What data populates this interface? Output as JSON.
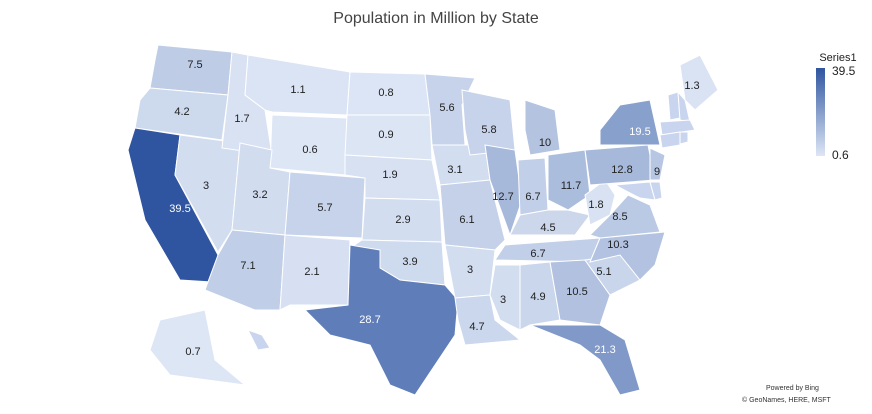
{
  "chart_data": {
    "type": "choropleth",
    "title": "Population in Million by State",
    "series": [
      {
        "name": "Series1",
        "values": [
          7.5,
          4.2,
          39.5,
          3,
          1.7,
          1.1,
          0.6,
          3.2,
          7.1,
          5.7,
          2.1,
          0.8,
          0.9,
          1.9,
          2.9,
          3.9,
          28.7,
          5.6,
          3.1,
          6.1,
          3,
          4.7,
          5.8,
          12.7,
          10,
          6.7,
          11.7,
          4.5,
          6.7,
          3,
          4.9,
          10.5,
          21.3,
          5.1,
          10.3,
          8.5,
          1.8,
          12.8,
          19.5,
          9,
          1.3,
          0.7
        ]
      }
    ],
    "clim": [
      0.6,
      39.5
    ],
    "cticks": [
      0.6,
      39.5
    ],
    "colors": [
      "#dde6f5",
      "#2f55a0"
    ],
    "credits": [
      "Powered by Bing",
      "© GeoNames, HERE, MSFT"
    ]
  }
}
